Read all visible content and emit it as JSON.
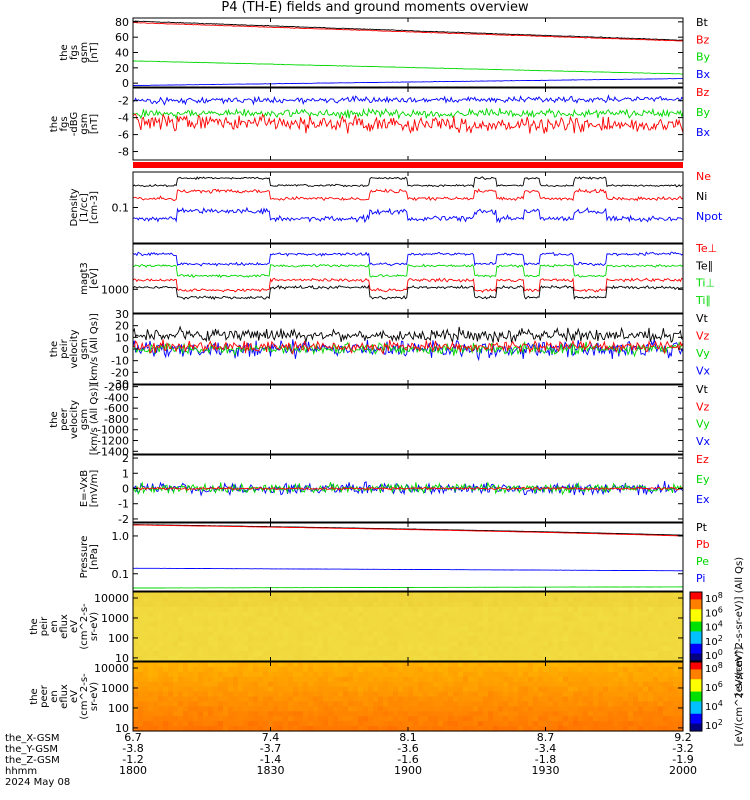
{
  "title": "P4 (TH-E) fields and ground moments overview",
  "colors": {
    "black": "#000000",
    "red": "#ff0000",
    "green": "#00d800",
    "blue": "#0000ff",
    "band": "#ff0000"
  },
  "chart_data": [
    {
      "id": "fgs_total",
      "type": "line",
      "ylabel": [
        "the",
        "fgs",
        "gsm",
        "[nT]"
      ],
      "ylim": [
        -5,
        85
      ],
      "yticks": [
        0,
        20,
        40,
        60,
        80
      ],
      "legend": [
        {
          "text": "Bt",
          "color": "#000000"
        },
        {
          "text": "Bz",
          "color": "#ff0000"
        },
        {
          "text": "By",
          "color": "#00d800"
        },
        {
          "text": "Bx",
          "color": "#0000ff"
        }
      ],
      "series": [
        {
          "name": "Bt",
          "color": "#000000",
          "start": 81,
          "end": 56,
          "noise": 0.6
        },
        {
          "name": "Bz",
          "color": "#ff0000",
          "start": 79,
          "end": 55,
          "noise": 0.6
        },
        {
          "name": "By",
          "color": "#00d800",
          "start": 29,
          "end": 12,
          "noise": 0.4
        },
        {
          "name": "Bx",
          "color": "#0000ff",
          "start": -3,
          "end": 6,
          "noise": 0.3
        }
      ]
    },
    {
      "id": "fgs_detrended",
      "type": "line",
      "ylabel": [
        "the",
        "fgs",
        "-dBG",
        "gsm",
        "[nT]"
      ],
      "ylim": [
        -9,
        -0.5
      ],
      "yticks": [
        -8,
        -6,
        -4,
        -2
      ],
      "legend": [
        {
          "text": "Bz",
          "color": "#ff0000"
        },
        {
          "text": "By",
          "color": "#00d800"
        },
        {
          "text": "Bx",
          "color": "#0000ff"
        }
      ],
      "series": [
        {
          "name": "Bx",
          "color": "#0000ff",
          "start": -2,
          "end": -1.8,
          "noise": 0.5
        },
        {
          "name": "By",
          "color": "#00d800",
          "start": -3.5,
          "end": -3.5,
          "noise": 0.7
        },
        {
          "name": "Bz",
          "color": "#ff0000",
          "start": -4.5,
          "end": -5,
          "noise": 1.3
        }
      ]
    },
    {
      "id": "density",
      "type": "line",
      "log": true,
      "ylabel": [
        "Density",
        "[1/cc]",
        "[cm-3]"
      ],
      "ylim": [
        0.02,
        0.5
      ],
      "yticks": [
        0.1
      ],
      "yticklabels": [
        "0.1"
      ],
      "legend": [
        {
          "text": "Ne",
          "color": "#ff0000"
        },
        {
          "text": "Ni",
          "color": "#000000"
        },
        {
          "text": "Npot",
          "color": "#0000ff"
        }
      ],
      "series": [
        {
          "name": "Ni",
          "color": "#000000",
          "level": 0.27,
          "noise": 0.03
        },
        {
          "name": "Ne",
          "color": "#ff0000",
          "level": 0.15,
          "noise": 0.05
        },
        {
          "name": "Npot",
          "color": "#0000ff",
          "level": 0.06,
          "noise": 0.08
        }
      ]
    },
    {
      "id": "temperature",
      "type": "line",
      "log": true,
      "ylabel": [
        "magt3",
        "[eV]"
      ],
      "ylim": [
        300,
        10000
      ],
      "yticks": [
        1000
      ],
      "yticklabels": [
        "1000"
      ],
      "legend": [
        {
          "text": "Te⊥",
          "color": "#ff0000"
        },
        {
          "text": "Te∥",
          "color": "#000000"
        },
        {
          "text": "Ti⊥",
          "color": "#00d800"
        },
        {
          "text": "Ti∥",
          "color": "#00d800"
        }
      ],
      "series": [
        {
          "name": "Ti∥ (blue)",
          "color": "#0000ff",
          "level": 6000,
          "noise": 0.05
        },
        {
          "name": "Ti",
          "color": "#00d800",
          "level": 3300,
          "noise": 0.04
        },
        {
          "name": "Te⊥",
          "color": "#ff0000",
          "level": 1600,
          "noise": 0.05
        },
        {
          "name": "Te∥",
          "color": "#000000",
          "level": 1100,
          "noise": 0.05
        }
      ]
    },
    {
      "id": "peir_velocity",
      "type": "line",
      "ylabel": [
        "the",
        "peir",
        "velocity",
        "gsm",
        "[km/s (All Qs)]"
      ],
      "ylim": [
        -30,
        30
      ],
      "yticks": [
        -30,
        -20,
        -10,
        0,
        10,
        20,
        30
      ],
      "legend": [
        {
          "text": "Vt",
          "color": "#000000"
        },
        {
          "text": "Vz",
          "color": "#ff0000"
        },
        {
          "text": "Vy",
          "color": "#00d800"
        },
        {
          "text": "Vx",
          "color": "#0000ff"
        }
      ],
      "series": [
        {
          "name": "Vx",
          "color": "#0000ff",
          "center": 0,
          "noise": 10
        },
        {
          "name": "Vy",
          "color": "#00d800",
          "center": 0,
          "noise": 7
        },
        {
          "name": "Vt",
          "color": "#000000",
          "center": 12,
          "noise": 8
        },
        {
          "name": "Vz",
          "color": "#ff0000",
          "center": 2,
          "noise": 7
        }
      ]
    },
    {
      "id": "peer_velocity",
      "type": "line",
      "ylabel": [
        "the",
        "peer",
        "velocity",
        "gsm",
        "[km/s (All Qs)]"
      ],
      "ylim": [
        -1450,
        -170
      ],
      "yticks": [
        -1400,
        -1200,
        -1000,
        -800,
        -600,
        -400,
        -200
      ],
      "legend": [
        {
          "text": "Vt",
          "color": "#000000"
        },
        {
          "text": "Vz",
          "color": "#ff0000"
        },
        {
          "text": "Vy",
          "color": "#00d800"
        },
        {
          "text": "Vx",
          "color": "#0000ff"
        }
      ],
      "series": []
    },
    {
      "id": "exb",
      "type": "line",
      "ylabel": [
        "E=-VxB",
        "[mV/m]"
      ],
      "ylim": [
        -2.2,
        2.2
      ],
      "yticks": [
        -2,
        -1,
        0,
        1,
        2
      ],
      "legend": [
        {
          "text": "Ez",
          "color": "#ff0000"
        },
        {
          "text": "Ey",
          "color": "#00d800"
        },
        {
          "text": "Ex",
          "color": "#0000ff"
        }
      ],
      "series": [
        {
          "name": "Ex",
          "color": "#0000ff",
          "center": 0,
          "noise": 0.55
        },
        {
          "name": "Ey",
          "color": "#00d800",
          "center": 0,
          "noise": 0.45
        },
        {
          "name": "Ez",
          "color": "#ff0000",
          "center": 0,
          "noise": 0.12
        }
      ]
    },
    {
      "id": "pressure",
      "type": "line",
      "log": true,
      "ylabel": [
        "Pressure",
        "[nPa]"
      ],
      "ylim": [
        0.035,
        2.2
      ],
      "yticks": [
        0.1,
        1.0
      ],
      "yticklabels": [
        "0.1",
        "1.0"
      ],
      "legend": [
        {
          "text": "Pt",
          "color": "#000000"
        },
        {
          "text": "Pb",
          "color": "#ff0000"
        },
        {
          "text": "Pe",
          "color": "#00d800"
        },
        {
          "text": "Pi",
          "color": "#0000ff"
        }
      ],
      "series": [
        {
          "name": "Pt",
          "color": "#000000",
          "start": 2.0,
          "end": 1.05,
          "noise": 0.01
        },
        {
          "name": "Pb",
          "color": "#ff0000",
          "start": 1.95,
          "end": 1.0,
          "noise": 0.01
        },
        {
          "name": "Pi",
          "color": "#0000ff",
          "start": 0.14,
          "end": 0.12,
          "noise": 0.01
        },
        {
          "name": "Pe",
          "color": "#00d800",
          "start": 0.042,
          "end": 0.045,
          "noise": 0.01
        }
      ]
    },
    {
      "id": "peir_eflux",
      "type": "heatmap",
      "log": true,
      "ylabel": [
        "the",
        "peir",
        "en",
        "eflux",
        "eV",
        "(cm^2-s-",
        "sr-eV)"
      ],
      "ylim": [
        7,
        20000
      ],
      "yticks": [
        10,
        100,
        1000,
        10000
      ],
      "yticklabels": [
        "10",
        "100",
        "1000",
        "10000"
      ],
      "colorbar": {
        "ticklabels": [
          "10^8",
          "10^6",
          "10^4",
          "10^2",
          "10^0"
        ],
        "label": "[eV/(cm^2-s-sr-eV)] (All Qs)"
      }
    },
    {
      "id": "peer_eflux",
      "type": "heatmap",
      "log": true,
      "ylabel": [
        "the",
        "peer",
        "en",
        "eflux",
        "eV",
        "(cm^2-s-",
        "sr-eV)"
      ],
      "ylim": [
        7,
        20000
      ],
      "yticks": [
        10,
        100,
        1000,
        10000
      ],
      "yticklabels": [
        "10",
        "100",
        "1000",
        "10000"
      ],
      "colorbar": {
        "ticklabels": [
          "10^8",
          "10^6",
          "10^4",
          "10^2"
        ],
        "label": "[eV/(cm^2-s-sr-eV)]"
      }
    }
  ],
  "x_axis": {
    "row_labels": [
      "the_X-GSM",
      "the_Y-GSM",
      "the_Z-GSM",
      "hhmm",
      "2024 May 08"
    ],
    "ticks": [
      {
        "rows": [
          "6.7",
          "-3.8",
          "-1.2",
          "1800"
        ]
      },
      {
        "rows": [
          "7.4",
          "-3.7",
          "-1.4",
          "1830"
        ]
      },
      {
        "rows": [
          "8.1",
          "-3.6",
          "-1.6",
          "1900"
        ]
      },
      {
        "rows": [
          "8.7",
          "-3.4",
          "-1.8",
          "1930"
        ]
      },
      {
        "rows": [
          "9.2",
          "-3.2",
          "-1.9",
          "2000"
        ]
      }
    ]
  }
}
